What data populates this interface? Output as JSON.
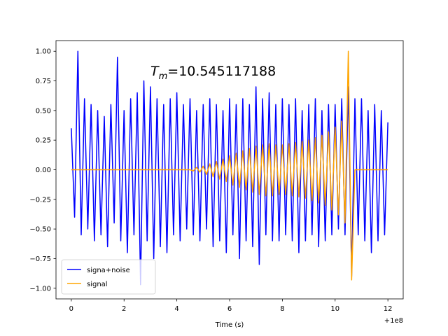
{
  "chart_data": {
    "type": "line",
    "annotation": {
      "symbol": "T",
      "subscript": "m",
      "text": "=10.545117188"
    },
    "xlabel": "Time (s)",
    "x_offset_label": "+1e8",
    "x": [
      0,
      0.125,
      0.25,
      0.375,
      0.5,
      0.625,
      0.75,
      0.875,
      1,
      1.125,
      1.25,
      1.375,
      1.5,
      1.625,
      1.75,
      1.875,
      2,
      2.125,
      2.25,
      2.375,
      2.5,
      2.625,
      2.75,
      2.875,
      3,
      3.125,
      3.25,
      3.375,
      3.5,
      3.625,
      3.75,
      3.875,
      4,
      4.125,
      4.25,
      4.375,
      4.5,
      4.625,
      4.75,
      4.875,
      5,
      5.125,
      5.25,
      5.375,
      5.5,
      5.625,
      5.75,
      5.875,
      6,
      6.125,
      6.25,
      6.375,
      6.5,
      6.625,
      6.75,
      6.875,
      7,
      7.125,
      7.25,
      7.375,
      7.5,
      7.625,
      7.75,
      7.875,
      8,
      8.125,
      8.25,
      8.375,
      8.5,
      8.625,
      8.75,
      8.875,
      9,
      9.125,
      9.25,
      9.375,
      9.5,
      9.625,
      9.75,
      9.875,
      10,
      10.125,
      10.25,
      10.375,
      10.5,
      10.625,
      10.75,
      10.875,
      11,
      11.125,
      11.25,
      11.375,
      11.5,
      11.625,
      11.75,
      11.875,
      12
    ],
    "series": [
      {
        "name": "signa+noise",
        "color": "#0000ff",
        "values": [
          0.35,
          -0.4,
          1.0,
          -0.55,
          0.6,
          -0.5,
          0.55,
          -0.6,
          0.5,
          -0.55,
          0.45,
          -0.65,
          0.55,
          -0.45,
          0.95,
          -0.6,
          0.5,
          -0.7,
          0.6,
          -0.55,
          0.65,
          -0.97,
          0.75,
          -0.6,
          0.7,
          -0.75,
          0.6,
          -0.65,
          0.55,
          -0.7,
          0.6,
          -0.55,
          0.65,
          -0.6,
          0.55,
          -0.5,
          0.6,
          -0.55,
          0.5,
          -0.6,
          0.55,
          -0.5,
          0.6,
          -0.65,
          0.55,
          -0.6,
          0.5,
          -0.7,
          0.6,
          -0.55,
          0.55,
          -0.75,
          0.6,
          -0.6,
          0.55,
          -0.65,
          0.7,
          -0.8,
          0.6,
          -0.55,
          0.65,
          -0.6,
          0.55,
          -0.6,
          0.6,
          -0.55,
          0.55,
          -0.6,
          0.6,
          -0.7,
          0.5,
          -0.6,
          0.55,
          -0.55,
          0.6,
          -0.65,
          0.5,
          -0.6,
          0.55,
          -0.55,
          0.55,
          -0.5,
          0.6,
          -0.55,
          0.7,
          -0.9,
          0.6,
          -0.55,
          0.6,
          -0.6,
          0.5,
          -0.7,
          0.55,
          -0.6,
          0.5,
          -0.55,
          0.4
        ]
      },
      {
        "name": "signal",
        "color": "#ffa500",
        "values": [
          0,
          0,
          0,
          0,
          0,
          0,
          0,
          0,
          0,
          0,
          0,
          0,
          0,
          0,
          0,
          0,
          0,
          0,
          0,
          0,
          0,
          0,
          0,
          0,
          0,
          0,
          0,
          0,
          0,
          0,
          0,
          0,
          0,
          0,
          0,
          0,
          0,
          -0.01,
          0.02,
          -0.02,
          0.03,
          -0.04,
          0.05,
          -0.06,
          0.07,
          -0.08,
          0.09,
          -0.1,
          0.12,
          -0.13,
          0.14,
          -0.15,
          0.16,
          -0.17,
          0.18,
          -0.19,
          0.2,
          -0.21,
          0.21,
          -0.22,
          0.22,
          -0.22,
          0.21,
          -0.21,
          0.21,
          -0.21,
          0.22,
          -0.22,
          0.23,
          -0.23,
          0.24,
          -0.24,
          0.25,
          -0.26,
          0.27,
          -0.28,
          0.29,
          -0.3,
          0.32,
          -0.34,
          0.36,
          -0.38,
          0.41,
          -0.45,
          1.0,
          -0.93,
          0,
          0,
          0,
          0,
          0,
          0,
          0,
          0,
          0,
          0,
          0
        ]
      }
    ],
    "xlim": [
      -0.58,
      12.58
    ],
    "ylim": [
      -1.09,
      1.09
    ],
    "xticks": [
      0,
      2,
      4,
      6,
      8,
      10,
      12
    ],
    "yticks": [
      {
        "value": -1,
        "label": "−1.00"
      },
      {
        "value": -0.75,
        "label": "−0.75"
      },
      {
        "value": -0.5,
        "label": "−0.50"
      },
      {
        "value": -0.25,
        "label": "−0.25"
      },
      {
        "value": 0,
        "label": "0.00"
      },
      {
        "value": 0.25,
        "label": "0.25"
      },
      {
        "value": 0.5,
        "label": "0.50"
      },
      {
        "value": 0.75,
        "label": "0.75"
      },
      {
        "value": 1,
        "label": "1.00"
      }
    ],
    "legend": "lower left",
    "grid": false
  }
}
